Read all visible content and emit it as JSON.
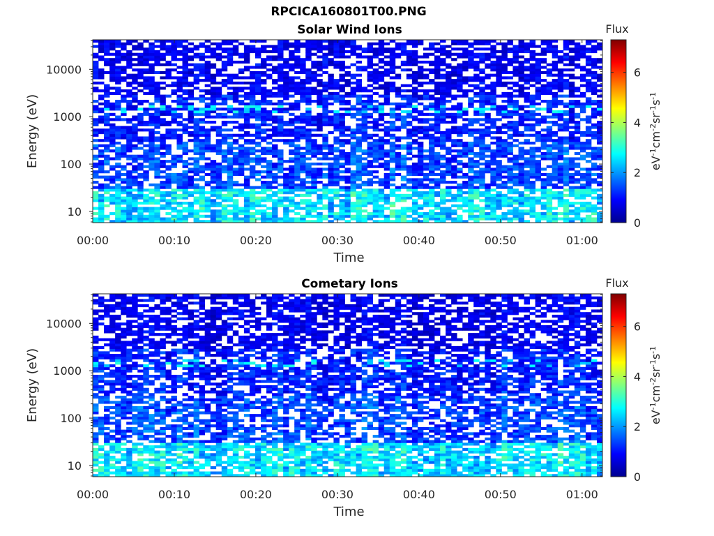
{
  "figure": {
    "title": "RPCICA160801T00.PNG"
  },
  "colormap": [
    "#00008f",
    "#0000ff",
    "#0080ff",
    "#00ffff",
    "#80ff80",
    "#ffff00",
    "#ff8000",
    "#ff0000",
    "#800000"
  ],
  "chart_data": [
    {
      "type": "heatmap",
      "title": "Solar Wind Ions",
      "xlabel": "Time",
      "ylabel": "Energy (eV)",
      "x_tick_labels": [
        "00:00",
        "00:10",
        "00:20",
        "00:30",
        "00:40",
        "00:50",
        "01:00"
      ],
      "x_tick_minutes": [
        0,
        10,
        20,
        30,
        40,
        50,
        60
      ],
      "xlim_minutes": [
        0,
        62.5
      ],
      "y_scale": "log",
      "y_tick_labels": [
        "10",
        "100",
        "1000",
        "10000"
      ],
      "y_tick_values": [
        10,
        100,
        1000,
        10000
      ],
      "ylim": [
        5.8,
        42000
      ],
      "colorbar": {
        "label": "Flux",
        "units": "eV-1cm-2sr-1s-1",
        "clim": [
          0,
          7.3
        ],
        "tick_labels": [
          "0",
          "2",
          "4",
          "6"
        ],
        "tick_values": [
          0,
          2,
          4,
          6
        ]
      },
      "grid": "off",
      "note": "Flux values per (time, energy) bin are not individually readable; low-energy bins (<30 eV) mostly 1.5–3.5, 30–3000 eV mostly 0.5–2, >3000 eV mostly 0.3–1.3, with frequent empty (white) bins."
    },
    {
      "type": "heatmap",
      "title": "Cometary Ions",
      "xlabel": "Time",
      "ylabel": "Energy (eV)",
      "x_tick_labels": [
        "00:00",
        "00:10",
        "00:20",
        "00:30",
        "00:40",
        "00:50",
        "01:00"
      ],
      "x_tick_minutes": [
        0,
        10,
        20,
        30,
        40,
        50,
        60
      ],
      "xlim_minutes": [
        0,
        62.5
      ],
      "y_scale": "log",
      "y_tick_labels": [
        "10",
        "100",
        "1000",
        "10000"
      ],
      "y_tick_values": [
        10,
        100,
        1000,
        10000
      ],
      "ylim": [
        5.8,
        42000
      ],
      "colorbar": {
        "label": "Flux",
        "units": "eV-1cm-2sr-1s-1",
        "clim": [
          0,
          7.3
        ],
        "tick_labels": [
          "0",
          "2",
          "4",
          "6"
        ],
        "tick_values": [
          0,
          2,
          4,
          6
        ]
      },
      "grid": "off",
      "note": "Flux values per (time, energy) bin are not individually readable; same distribution as the solar wind panel."
    }
  ]
}
